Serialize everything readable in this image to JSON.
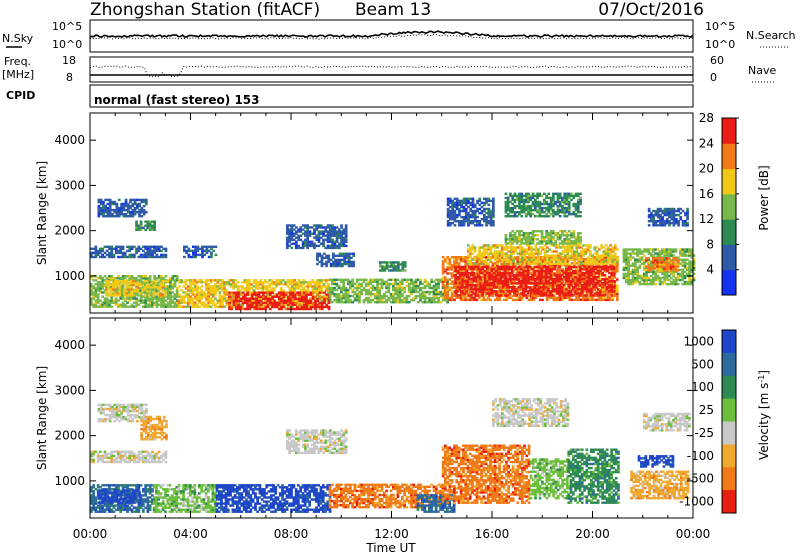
{
  "header": {
    "station": "Zhongshan Station (fitACF)",
    "beam": "Beam 13",
    "date": "07/Oct/2016"
  },
  "panels": {
    "noise": {
      "left_label": "N.Sky",
      "left_ticks": [
        "10^5",
        "10^0"
      ],
      "right_label": "N.Search",
      "right_ticks": [
        "10^5",
        "10^0"
      ]
    },
    "freq": {
      "left_label_1": "Freq.",
      "left_label_2": "[MHz]",
      "left_ticks": [
        "18",
        "8"
      ],
      "right_label": "Nave",
      "right_ticks": [
        "60",
        "0"
      ]
    },
    "cpid": {
      "label": "CPID",
      "text": "normal (fast stereo) 153"
    }
  },
  "chart_data": [
    {
      "type": "heatmap",
      "title": "",
      "xlabel": "Time UT",
      "ylabel": "Slant Range [km]",
      "x_ticks": [
        "00:00",
        "04:00",
        "08:00",
        "12:00",
        "16:00",
        "20:00",
        "00:00"
      ],
      "xlim_hours": [
        0,
        24
      ],
      "y_ticks": [
        1000,
        2000,
        3000,
        4000
      ],
      "ylim": [
        180,
        4600
      ],
      "colorbar": {
        "label": "Power [dB]",
        "ticks": [
          4,
          8,
          12,
          16,
          20,
          24,
          28
        ],
        "colors": [
          "#1432f0",
          "#2e5aa8",
          "#2d8a52",
          "#78b84a",
          "#f0c818",
          "#f07a18",
          "#ea1e14"
        ]
      },
      "regions": [
        {
          "t0": 0.0,
          "t1": 3.5,
          "r0": 300,
          "r1": 1000,
          "level": 3
        },
        {
          "t0": 0.6,
          "t1": 3.0,
          "r0": 550,
          "r1": 900,
          "level": 4
        },
        {
          "t0": 0.0,
          "t1": 3.0,
          "r0": 1400,
          "r1": 1650,
          "level": 1
        },
        {
          "t0": 0.3,
          "t1": 2.2,
          "r0": 2300,
          "r1": 2700,
          "level": 1
        },
        {
          "t0": 1.8,
          "t1": 2.6,
          "r0": 2000,
          "r1": 2200,
          "level": 2
        },
        {
          "t0": 3.5,
          "t1": 9.5,
          "r0": 300,
          "r1": 900,
          "level": 4
        },
        {
          "t0": 5.5,
          "t1": 9.5,
          "r0": 250,
          "r1": 650,
          "level": 6
        },
        {
          "t0": 3.7,
          "t1": 5.0,
          "r0": 1400,
          "r1": 1650,
          "level": 1
        },
        {
          "t0": 7.8,
          "t1": 10.2,
          "r0": 1600,
          "r1": 2100,
          "level": 1
        },
        {
          "t0": 9.5,
          "t1": 14.2,
          "r0": 400,
          "r1": 900,
          "level": 3
        },
        {
          "t0": 9.0,
          "t1": 10.5,
          "r0": 1200,
          "r1": 1500,
          "level": 1
        },
        {
          "t0": 11.5,
          "t1": 12.5,
          "r0": 1100,
          "r1": 1300,
          "level": 2
        },
        {
          "t0": 14.0,
          "t1": 21.0,
          "r0": 450,
          "r1": 1400,
          "level": 5
        },
        {
          "t0": 14.5,
          "t1": 20.8,
          "r0": 550,
          "r1": 1200,
          "level": 6
        },
        {
          "t0": 15.0,
          "t1": 21.0,
          "r0": 1250,
          "r1": 1700,
          "level": 4
        },
        {
          "t0": 16.5,
          "t1": 19.5,
          "r0": 1700,
          "r1": 2000,
          "level": 3
        },
        {
          "t0": 14.2,
          "t1": 16.0,
          "r0": 2100,
          "r1": 2700,
          "level": 1
        },
        {
          "t0": 16.5,
          "t1": 19.5,
          "r0": 2300,
          "r1": 2800,
          "level": 2
        },
        {
          "t0": 21.2,
          "t1": 24.0,
          "r0": 800,
          "r1": 1600,
          "level": 3
        },
        {
          "t0": 22.0,
          "t1": 23.4,
          "r0": 1100,
          "r1": 1400,
          "level": 5
        },
        {
          "t0": 22.2,
          "t1": 23.8,
          "r0": 2100,
          "r1": 2500,
          "level": 1
        }
      ]
    },
    {
      "type": "heatmap",
      "title": "",
      "xlabel": "Time UT",
      "ylabel": "Slant Range [km]",
      "x_ticks": [
        "00:00",
        "04:00",
        "08:00",
        "12:00",
        "16:00",
        "20:00",
        "00:00"
      ],
      "xlim_hours": [
        0,
        24
      ],
      "y_ticks": [
        1000,
        2000,
        3000,
        4000
      ],
      "ylim": [
        180,
        4600
      ],
      "colorbar": {
        "label": "Velocity [m s^-1]",
        "ticks": [
          "1000",
          "500",
          "100",
          "25",
          "-25",
          "-100",
          "-500",
          "-1000"
        ],
        "colors": [
          "#1e46c8",
          "#2d6a9e",
          "#2d8a52",
          "#6cbf3a",
          "#c8c8c8",
          "#f0a830",
          "#f07a18",
          "#e82010"
        ]
      },
      "regions": [
        {
          "t0": 0.0,
          "t1": 2.5,
          "r0": 300,
          "r1": 900,
          "level": 1
        },
        {
          "t0": 0.3,
          "t1": 2.0,
          "r0": 500,
          "r1": 800,
          "level": 0
        },
        {
          "t0": 0.0,
          "t1": 3.0,
          "r0": 1400,
          "r1": 1650,
          "level": 4
        },
        {
          "t0": 0.3,
          "t1": 2.2,
          "r0": 2300,
          "r1": 2700,
          "level": 4
        },
        {
          "t0": 2.0,
          "t1": 3.0,
          "r0": 1900,
          "r1": 2400,
          "level": 5
        },
        {
          "t0": 2.5,
          "t1": 5.0,
          "r0": 300,
          "r1": 900,
          "level": 3
        },
        {
          "t0": 5.0,
          "t1": 9.5,
          "r0": 300,
          "r1": 900,
          "level": 0
        },
        {
          "t0": 9.5,
          "t1": 14.0,
          "r0": 400,
          "r1": 900,
          "level": 6
        },
        {
          "t0": 7.8,
          "t1": 10.2,
          "r0": 1600,
          "r1": 2100,
          "level": 4
        },
        {
          "t0": 13.0,
          "t1": 14.5,
          "r0": 300,
          "r1": 700,
          "level": 1
        },
        {
          "t0": 14.0,
          "t1": 17.5,
          "r0": 500,
          "r1": 1800,
          "level": 6
        },
        {
          "t0": 17.5,
          "t1": 19.0,
          "r0": 600,
          "r1": 1500,
          "level": 3
        },
        {
          "t0": 19.0,
          "t1": 21.0,
          "r0": 500,
          "r1": 1700,
          "level": 2
        },
        {
          "t0": 16.0,
          "t1": 19.0,
          "r0": 2200,
          "r1": 2800,
          "level": 4
        },
        {
          "t0": 21.5,
          "t1": 23.8,
          "r0": 600,
          "r1": 1200,
          "level": 5
        },
        {
          "t0": 21.8,
          "t1": 23.2,
          "r0": 1300,
          "r1": 1550,
          "level": 0
        },
        {
          "t0": 22.0,
          "t1": 23.8,
          "r0": 2100,
          "r1": 2500,
          "level": 4
        }
      ]
    }
  ]
}
